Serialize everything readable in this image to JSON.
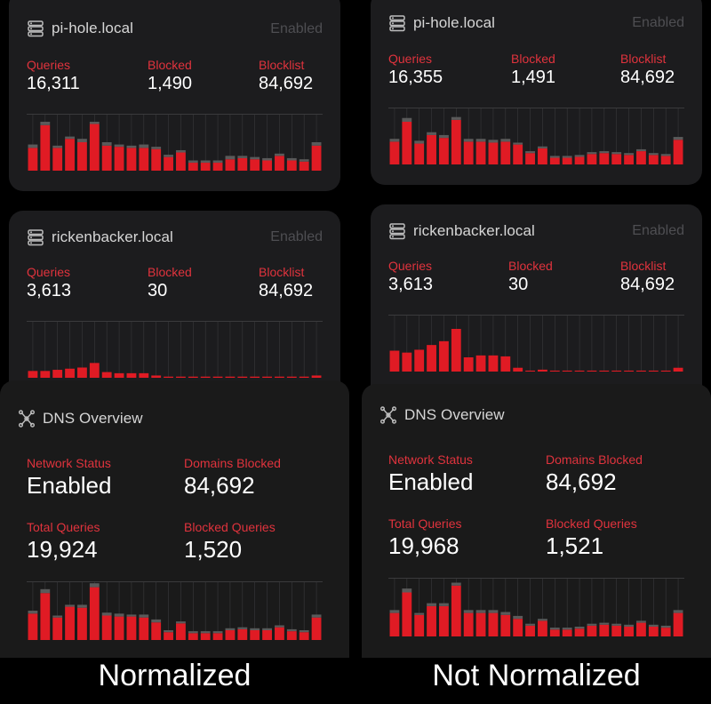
{
  "left": {
    "pihole": {
      "title": "pi-hole.local",
      "status": "Enabled",
      "queries_label": "Queries",
      "queries": "16,311",
      "blocked_label": "Blocked",
      "blocked": "1,490",
      "blocklist_label": "Blocklist",
      "blocklist": "84,692"
    },
    "ricken": {
      "title": "rickenbacker.local",
      "status": "Enabled",
      "queries_label": "Queries",
      "queries": "3,613",
      "blocked_label": "Blocked",
      "blocked": "30",
      "blocklist_label": "Blocklist",
      "blocklist": "84,692"
    },
    "dns": {
      "title": "DNS Overview",
      "network_status_label": "Network Status",
      "network_status": "Enabled",
      "domains_blocked_label": "Domains Blocked",
      "domains_blocked": "84,692",
      "total_queries_label": "Total Queries",
      "total_queries": "19,924",
      "blocked_queries_label": "Blocked Queries",
      "blocked_queries": "1,520"
    },
    "caption": "Normalized"
  },
  "right": {
    "pihole": {
      "title": "pi-hole.local",
      "status": "Enabled",
      "queries_label": "Queries",
      "queries": "16,355",
      "blocked_label": "Blocked",
      "blocked": "1,491",
      "blocklist_label": "Blocklist",
      "blocklist": "84,692"
    },
    "ricken": {
      "title": "rickenbacker.local",
      "status": "Enabled",
      "queries_label": "Queries",
      "queries": "3,613",
      "blocked_label": "Blocked",
      "blocked": "30",
      "blocklist_label": "Blocklist",
      "blocklist": "84,692"
    },
    "dns": {
      "title": "DNS Overview",
      "network_status_label": "Network Status",
      "network_status": "Enabled",
      "domains_blocked_label": "Domains Blocked",
      "domains_blocked": "84,692",
      "total_queries_label": "Total Queries",
      "total_queries": "19,968",
      "blocked_queries_label": "Blocked Queries",
      "blocked_queries": "1,521"
    },
    "caption": "Not Normalized"
  },
  "colors": {
    "bar": "#e01b24",
    "bar_top": "#5a5a5a",
    "grid": "#3a3a3c",
    "accent": "#e0333d"
  },
  "icons": {
    "server": "server-icon",
    "network": "network-icon"
  },
  "chart_data": [
    {
      "type": "bar",
      "id": "left-pihole",
      "series": [
        {
          "name": "",
          "values": [
            20,
            40,
            20,
            28,
            25,
            41,
            22,
            21,
            20,
            20,
            19,
            12,
            16,
            7,
            7,
            7,
            10,
            11,
            10,
            9,
            13,
            9,
            8,
            22
          ]
        },
        {
          "name": "",
          "values": [
            3,
            3,
            2,
            2,
            3,
            2,
            3,
            2,
            2,
            3,
            2,
            2,
            2,
            2,
            2,
            2,
            3,
            2,
            2,
            2,
            2,
            2,
            2,
            3
          ]
        }
      ],
      "ylim": [
        0,
        50
      ]
    },
    {
      "type": "bar",
      "id": "left-ricken",
      "series": [
        {
          "name": "",
          "values": [
            6,
            6,
            7,
            8,
            9,
            13,
            5,
            4,
            4,
            4,
            2,
            1,
            1,
            1,
            1,
            1,
            1,
            1,
            1,
            1,
            1,
            1,
            1,
            2
          ]
        }
      ],
      "ylim": [
        0,
        50
      ]
    },
    {
      "type": "bar",
      "id": "left-dns",
      "series": [
        {
          "name": "",
          "values": [
            27,
            48,
            23,
            34,
            33,
            54,
            25,
            24,
            24,
            23,
            18,
            8,
            17,
            7,
            7,
            7,
            10,
            11,
            10,
            10,
            13,
            9,
            8,
            23
          ]
        },
        {
          "name": "",
          "values": [
            3,
            4,
            2,
            2,
            3,
            4,
            3,
            3,
            2,
            3,
            3,
            2,
            2,
            2,
            2,
            2,
            2,
            2,
            2,
            2,
            2,
            2,
            2,
            3
          ]
        }
      ],
      "ylim": [
        0,
        60
      ]
    },
    {
      "type": "bar",
      "id": "right-pihole",
      "series": [
        {
          "name": "",
          "values": [
            24,
            45,
            22,
            31,
            28,
            47,
            24,
            24,
            23,
            24,
            21,
            12,
            17,
            7,
            7,
            8,
            11,
            12,
            11,
            10,
            14,
            10,
            9,
            26
          ]
        },
        {
          "name": "",
          "values": [
            3,
            4,
            3,
            3,
            3,
            3,
            3,
            3,
            3,
            3,
            2,
            2,
            2,
            2,
            2,
            2,
            2,
            2,
            2,
            2,
            2,
            2,
            2,
            3
          ]
        }
      ],
      "ylim": [
        0,
        60
      ]
    },
    {
      "type": "bar",
      "id": "right-ricken",
      "series": [
        {
          "name": "",
          "values": [
            22,
            20,
            23,
            28,
            32,
            45,
            15,
            17,
            17,
            16,
            4,
            1,
            2,
            1,
            1,
            1,
            1,
            1,
            1,
            1,
            1,
            1,
            1,
            4
          ]
        }
      ],
      "ylim": [
        0,
        60
      ]
    },
    {
      "type": "bar",
      "id": "right-dns",
      "series": [
        {
          "name": "",
          "values": [
            24,
            45,
            22,
            31,
            31,
            52,
            24,
            24,
            24,
            22,
            18,
            11,
            16,
            7,
            7,
            8,
            11,
            12,
            11,
            10,
            14,
            10,
            9,
            24
          ]
        },
        {
          "name": "",
          "values": [
            3,
            4,
            2,
            3,
            3,
            3,
            3,
            3,
            3,
            3,
            3,
            2,
            2,
            2,
            2,
            2,
            2,
            2,
            2,
            2,
            2,
            2,
            2,
            3
          ]
        }
      ],
      "ylim": [
        0,
        60
      ]
    }
  ]
}
